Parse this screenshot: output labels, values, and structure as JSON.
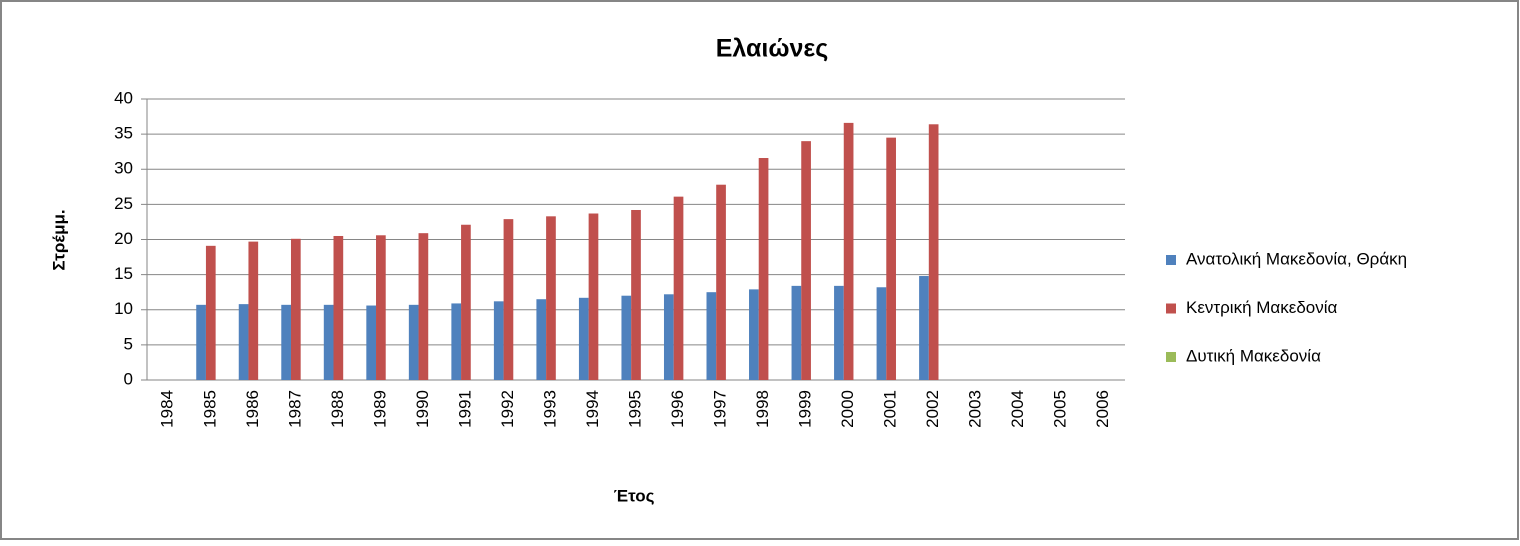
{
  "chart_data": {
    "type": "bar",
    "title": "Ελαιώνες",
    "x_label": "Έτος",
    "y_label": "Στρέμμ.",
    "categories": [
      "1984",
      "1985",
      "1986",
      "1987",
      "1988",
      "1989",
      "1990",
      "1991",
      "1992",
      "1993",
      "1994",
      "1995",
      "1996",
      "1997",
      "1998",
      "1999",
      "2000",
      "2001",
      "2002",
      "2003",
      "2004",
      "2005",
      "2006"
    ],
    "series": [
      {
        "name": "Ανατολική Μακεδονία, Θράκη",
        "color": "#4f81bd",
        "values": [
          null,
          10.7,
          10.8,
          10.7,
          10.7,
          10.6,
          10.7,
          10.9,
          11.2,
          11.5,
          11.7,
          12.0,
          12.2,
          12.5,
          12.9,
          13.4,
          13.4,
          13.2,
          14.8,
          null,
          null,
          null,
          null
        ]
      },
      {
        "name": "Κεντρική Μακεδονία",
        "color": "#c0504d",
        "values": [
          null,
          19.1,
          19.7,
          20.1,
          20.5,
          20.6,
          20.9,
          22.1,
          22.9,
          23.3,
          23.7,
          24.2,
          26.1,
          27.8,
          31.6,
          34.0,
          36.6,
          34.5,
          36.4,
          null,
          null,
          null,
          null
        ]
      },
      {
        "name": "Δυτική Μακεδονία",
        "color": "#9bbb59",
        "values": [
          null,
          null,
          null,
          null,
          null,
          null,
          null,
          null,
          null,
          null,
          null,
          null,
          null,
          null,
          null,
          null,
          null,
          null,
          null,
          null,
          null,
          null,
          null
        ]
      }
    ],
    "ylim": [
      0,
      40
    ],
    "yticks": [
      0,
      5,
      10,
      15,
      20,
      25,
      30,
      35,
      40
    ],
    "grid": true,
    "legend": "right"
  }
}
